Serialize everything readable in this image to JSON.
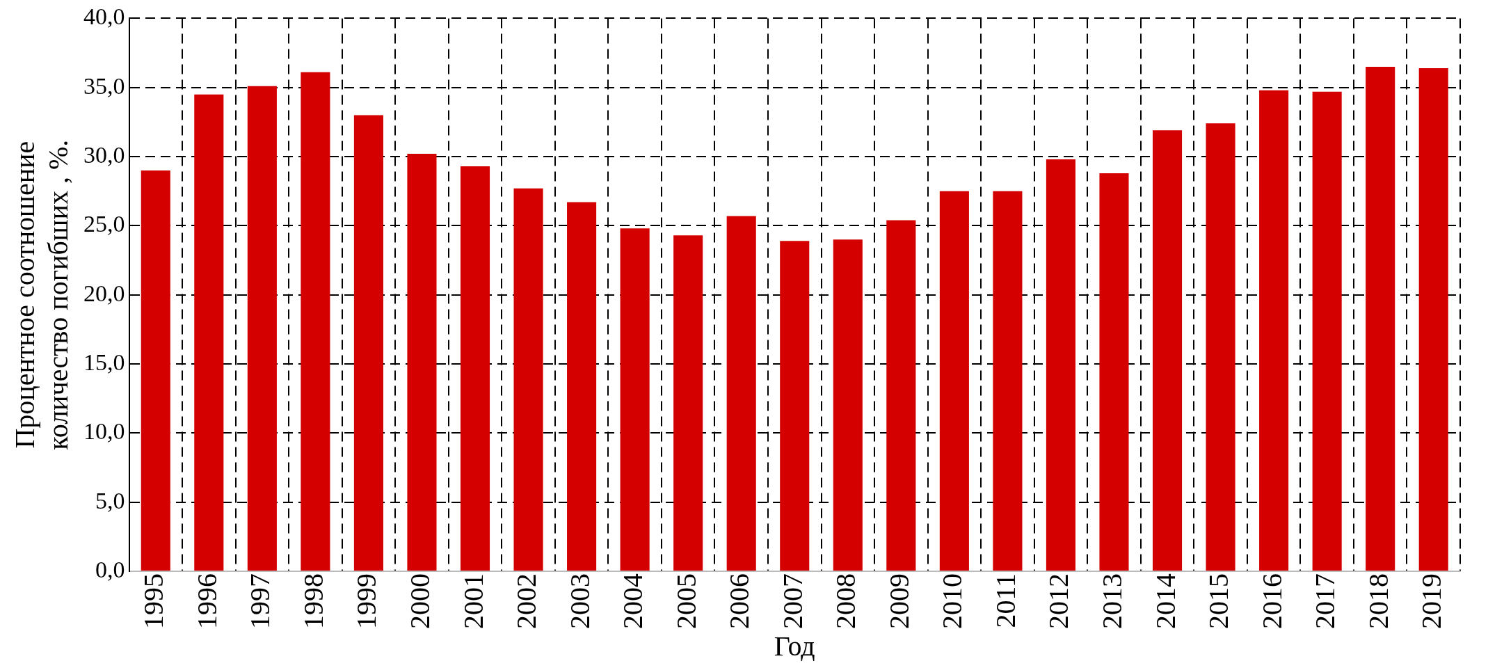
{
  "chart_data": {
    "type": "bar",
    "xlabel": "Год",
    "ylabel": "Процентное соотношение количество погибших , %.",
    "categories": [
      "1995",
      "1996",
      "1997",
      "1998",
      "1999",
      "2000",
      "2001",
      "2002",
      "2003",
      "2004",
      "2005",
      "2006",
      "2007",
      "2008",
      "2009",
      "2010",
      "2011",
      "2012",
      "2013",
      "2014",
      "2015",
      "2016",
      "2017",
      "2018",
      "2019"
    ],
    "values": [
      29.0,
      34.5,
      35.1,
      36.1,
      33.0,
      30.2,
      29.3,
      27.7,
      26.7,
      24.8,
      24.3,
      25.7,
      23.9,
      24.0,
      25.4,
      27.5,
      27.5,
      29.8,
      28.8,
      31.9,
      32.4,
      34.8,
      34.7,
      36.5,
      36.4
    ],
    "color": "#d40000",
    "ylim": [
      0,
      40
    ],
    "yticks": [
      {
        "value": 0,
        "label": "0,0"
      },
      {
        "value": 5,
        "label": "5,0"
      },
      {
        "value": 10,
        "label": "10,0"
      },
      {
        "value": 15,
        "label": "15,0"
      },
      {
        "value": 20,
        "label": "20,0"
      },
      {
        "value": 25,
        "label": "25,0"
      },
      {
        "value": 30,
        "label": "30,0"
      },
      {
        "value": 35,
        "label": "35,0"
      },
      {
        "value": 40,
        "label": "40,0"
      }
    ],
    "grid": true
  }
}
